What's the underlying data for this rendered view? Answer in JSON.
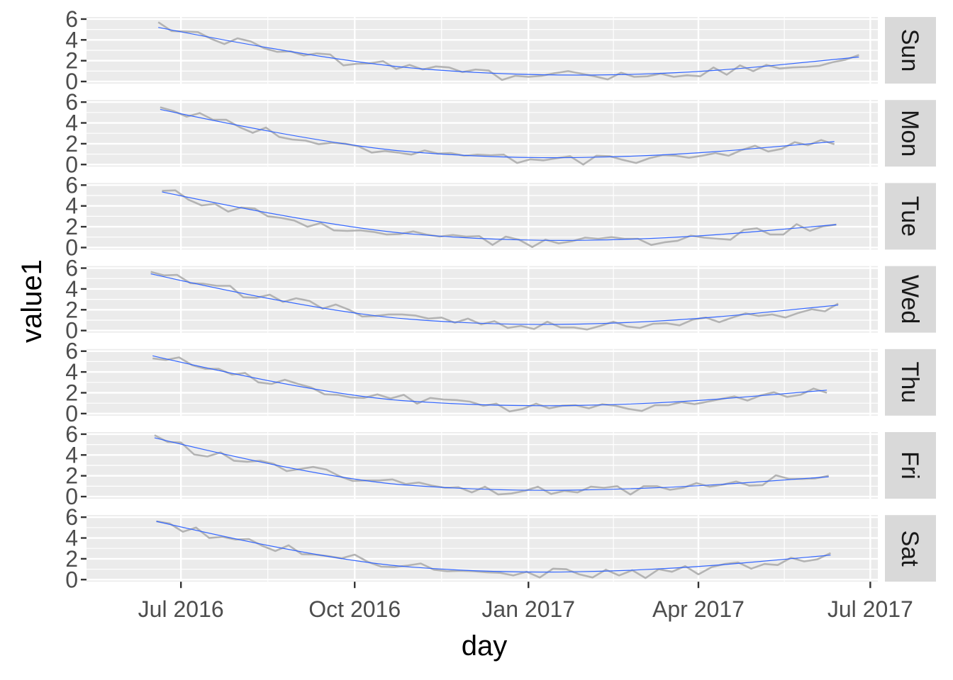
{
  "chart_data": {
    "type": "line",
    "facet": "rows",
    "xlabel": "day",
    "ylabel": "value1",
    "x_ticks": [
      "Jul 2016",
      "Oct 2016",
      "Jan 2017",
      "Apr 2017",
      "Jul 2017"
    ],
    "x_tick_dates": [
      "2016-07-01",
      "2016-10-01",
      "2017-01-01",
      "2017-04-01",
      "2017-07-01"
    ],
    "xlim": [
      "2016-05-12",
      "2017-07-05"
    ],
    "ylim": [
      -0.2,
      6.2
    ],
    "y_ticks": [
      0,
      2,
      4,
      6
    ],
    "y_tick_labels": [
      "0",
      "2",
      "4",
      "6"
    ],
    "grid": true,
    "colors": {
      "observed": "#b3b3b3",
      "smooth": "#3366ff",
      "panel_bg": "#ebebeb",
      "strip_bg": "#d9d9d9",
      "grid": "#ffffff"
    },
    "facets": [
      {
        "label": "Sun",
        "start": "2016-06-19",
        "values": [
          5.7,
          4.85,
          4.8,
          4.75,
          4.1,
          3.6,
          4.15,
          3.85,
          3.2,
          2.85,
          2.9,
          2.5,
          2.7,
          2.6,
          1.55,
          1.7,
          1.75,
          1.95,
          1.2,
          1.6,
          1.15,
          1.45,
          1.35,
          0.9,
          1.15,
          1.05,
          0.15,
          0.55,
          0.45,
          0.55,
          0.8,
          1.0,
          0.75,
          0.5,
          0.2,
          0.85,
          0.45,
          0.5,
          0.75,
          0.45,
          0.6,
          0.5,
          1.35,
          0.65,
          1.55,
          1.0,
          1.6,
          1.25,
          1.35,
          1.4,
          1.5,
          1.85,
          2.1,
          2.55
        ],
        "smooth": [
          5.2,
          1.9,
          0.55,
          0.7,
          2.35
        ]
      },
      {
        "label": "Mon",
        "start": "2016-06-20",
        "values": [
          5.5,
          5.15,
          4.6,
          4.95,
          4.3,
          4.3,
          3.6,
          3.05,
          3.55,
          2.65,
          2.4,
          2.3,
          1.95,
          2.1,
          2.0,
          1.75,
          1.15,
          1.3,
          1.15,
          0.95,
          1.35,
          1.05,
          1.1,
          0.85,
          0.95,
          0.9,
          0.95,
          0.15,
          0.5,
          0.4,
          0.6,
          0.8,
          0.0,
          0.85,
          0.8,
          0.45,
          0.15,
          0.6,
          0.9,
          0.85,
          0.65,
          0.85,
          1.1,
          0.85,
          1.4,
          1.8,
          1.25,
          1.5,
          2.15,
          1.85,
          2.35,
          1.95
        ],
        "smooth": [
          5.3,
          1.85,
          0.55,
          0.8,
          2.2
        ]
      },
      {
        "label": "Tue",
        "start": "2016-06-21",
        "values": [
          5.45,
          5.5,
          4.6,
          4.05,
          4.2,
          3.45,
          3.85,
          3.75,
          3.0,
          2.85,
          2.6,
          2.0,
          2.35,
          1.65,
          1.6,
          1.65,
          1.5,
          1.25,
          1.3,
          1.55,
          1.25,
          1.05,
          1.2,
          1.05,
          1.1,
          0.25,
          1.05,
          0.75,
          0.05,
          0.75,
          0.4,
          0.6,
          0.95,
          0.85,
          1.0,
          0.85,
          0.85,
          0.25,
          0.5,
          0.65,
          1.15,
          0.95,
          0.85,
          0.75,
          1.7,
          1.85,
          1.25,
          1.25,
          2.25,
          1.6,
          2.05,
          2.2
        ],
        "smooth": [
          5.35,
          1.95,
          0.6,
          0.8,
          2.2
        ]
      },
      {
        "label": "Wed",
        "start": "2016-06-15",
        "values": [
          5.65,
          5.3,
          5.35,
          4.55,
          4.5,
          4.3,
          4.3,
          3.2,
          3.15,
          3.45,
          2.75,
          3.1,
          2.85,
          2.1,
          2.5,
          2.0,
          1.35,
          1.4,
          1.55,
          1.55,
          1.45,
          1.15,
          1.25,
          0.75,
          1.15,
          0.6,
          0.9,
          0.25,
          0.45,
          0.15,
          0.85,
          0.3,
          0.3,
          0.1,
          0.45,
          0.85,
          0.4,
          0.25,
          0.65,
          0.7,
          0.5,
          1.05,
          1.25,
          0.8,
          1.25,
          1.65,
          1.4,
          1.55,
          1.25,
          1.7,
          2.05,
          1.85,
          2.6
        ],
        "smooth": [
          5.45,
          1.75,
          0.45,
          0.8,
          2.45
        ]
      },
      {
        "label": "Thu",
        "start": "2016-06-16",
        "values": [
          5.3,
          5.15,
          5.4,
          4.65,
          4.3,
          4.3,
          3.75,
          3.9,
          3.0,
          2.85,
          3.25,
          2.85,
          2.5,
          1.85,
          1.8,
          1.55,
          1.5,
          1.85,
          1.45,
          1.8,
          0.95,
          1.5,
          1.35,
          1.3,
          1.15,
          0.75,
          0.95,
          0.2,
          0.45,
          0.95,
          0.5,
          0.75,
          0.8,
          0.5,
          0.9,
          0.75,
          0.45,
          0.25,
          0.8,
          0.8,
          1.1,
          0.9,
          1.15,
          1.4,
          1.65,
          1.25,
          1.75,
          2.05,
          1.6,
          1.8,
          2.4,
          2.0
        ],
        "smooth": [
          5.55,
          1.8,
          0.65,
          0.9,
          2.25
        ]
      },
      {
        "label": "Fri",
        "start": "2016-06-17",
        "values": [
          5.9,
          5.25,
          5.2,
          4.05,
          3.85,
          4.25,
          3.45,
          3.35,
          3.45,
          3.15,
          2.45,
          2.65,
          2.85,
          2.6,
          1.95,
          1.5,
          1.55,
          1.55,
          1.65,
          1.2,
          1.35,
          1.05,
          0.85,
          0.9,
          0.4,
          0.95,
          0.2,
          0.3,
          0.55,
          0.95,
          0.25,
          0.55,
          0.4,
          0.95,
          0.85,
          1.0,
          0.2,
          1.0,
          1.0,
          0.65,
          0.85,
          1.3,
          0.95,
          1.15,
          1.45,
          1.05,
          1.1,
          2.05,
          1.7,
          1.7,
          1.75,
          2.0
        ],
        "smooth": [
          5.65,
          1.7,
          0.5,
          0.75,
          1.9
        ]
      },
      {
        "label": "Sat",
        "start": "2016-06-18",
        "values": [
          5.6,
          5.4,
          4.6,
          5.0,
          4.0,
          4.1,
          3.85,
          3.9,
          3.25,
          2.75,
          3.3,
          2.45,
          2.4,
          2.25,
          2.05,
          2.4,
          1.7,
          1.25,
          1.2,
          1.35,
          1.55,
          0.95,
          0.8,
          0.85,
          0.8,
          0.7,
          0.65,
          0.4,
          0.75,
          0.2,
          1.05,
          1.0,
          0.5,
          0.2,
          0.95,
          0.4,
          0.9,
          0.15,
          1.0,
          0.75,
          1.3,
          0.5,
          1.2,
          1.5,
          1.65,
          1.05,
          1.5,
          1.4,
          2.1,
          1.75,
          1.95,
          2.55
        ],
        "smooth": [
          5.6,
          1.85,
          0.6,
          0.9,
          2.35
        ]
      }
    ]
  }
}
